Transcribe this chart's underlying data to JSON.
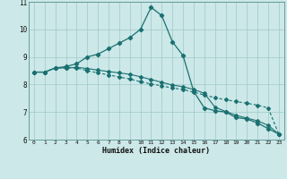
{
  "title": "",
  "xlabel": "Humidex (Indice chaleur)",
  "background_color": "#cce8e8",
  "plot_bg_color": "#cce8e8",
  "grid_color": "#a0c8c8",
  "line_color": "#1a7070",
  "xlim": [
    -0.5,
    23.5
  ],
  "ylim": [
    6,
    11
  ],
  "xticks": [
    0,
    1,
    2,
    3,
    4,
    5,
    6,
    7,
    8,
    9,
    10,
    11,
    12,
    13,
    14,
    15,
    16,
    17,
    18,
    19,
    20,
    21,
    22,
    23
  ],
  "yticks": [
    6,
    7,
    8,
    9,
    10,
    11
  ],
  "line1_x": [
    0,
    1,
    2,
    3,
    4,
    5,
    6,
    7,
    8,
    9,
    10,
    11,
    12,
    13,
    14,
    15,
    16,
    17,
    18,
    19,
    20,
    21,
    22,
    23
  ],
  "line1_y": [
    8.45,
    8.45,
    8.6,
    8.65,
    8.75,
    9.0,
    9.1,
    9.3,
    9.5,
    9.7,
    10.0,
    10.8,
    10.5,
    9.55,
    9.05,
    7.75,
    7.15,
    7.05,
    7.0,
    6.8,
    6.75,
    6.6,
    6.4,
    6.2
  ],
  "line2_x": [
    0,
    1,
    2,
    3,
    4,
    5,
    6,
    7,
    8,
    9,
    10,
    11,
    12,
    13,
    14,
    15,
    16,
    17,
    18,
    19,
    20,
    21,
    22,
    23
  ],
  "line2_y": [
    8.45,
    8.45,
    8.6,
    8.6,
    8.6,
    8.5,
    8.42,
    8.35,
    8.27,
    8.2,
    8.1,
    8.02,
    7.95,
    7.87,
    7.82,
    7.72,
    7.62,
    7.52,
    7.45,
    7.38,
    7.32,
    7.25,
    7.15,
    6.2
  ],
  "line3_x": [
    0,
    1,
    2,
    3,
    4,
    5,
    6,
    7,
    8,
    9,
    10,
    11,
    12,
    13,
    14,
    15,
    16,
    17,
    18,
    19,
    20,
    21,
    22,
    23
  ],
  "line3_y": [
    8.45,
    8.45,
    8.6,
    8.6,
    8.62,
    8.58,
    8.52,
    8.47,
    8.42,
    8.37,
    8.28,
    8.18,
    8.08,
    7.98,
    7.92,
    7.82,
    7.68,
    7.18,
    7.02,
    6.88,
    6.78,
    6.68,
    6.52,
    6.2
  ]
}
